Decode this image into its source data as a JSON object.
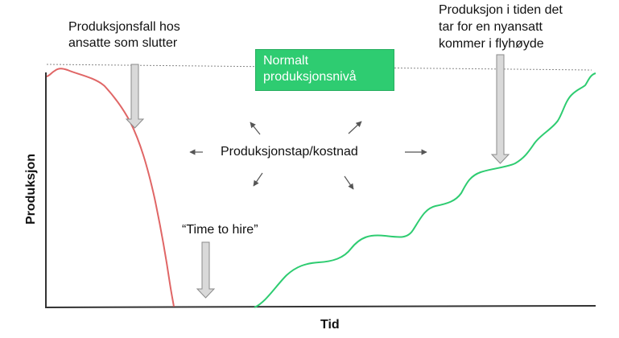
{
  "labels": {
    "fall": [
      "Produksjonsfall hos",
      "ansatte som slutter"
    ],
    "new_hire": [
      "Produksjon i tiden det",
      "tar for en nyansatt",
      "kommer i flyhøyde"
    ],
    "normal_level": [
      "Normalt",
      "produksjonsnivå"
    ],
    "loss": "Produksjonstap/kostnad",
    "time_to_hire": "“Time to hire”",
    "x_axis": "Tid",
    "y_axis": "Produksjon"
  },
  "colors": {
    "departing": "#e06666",
    "new_hire": "#2ecc71",
    "box": "#2ecc71",
    "arrow": "#d9d9d9"
  }
}
